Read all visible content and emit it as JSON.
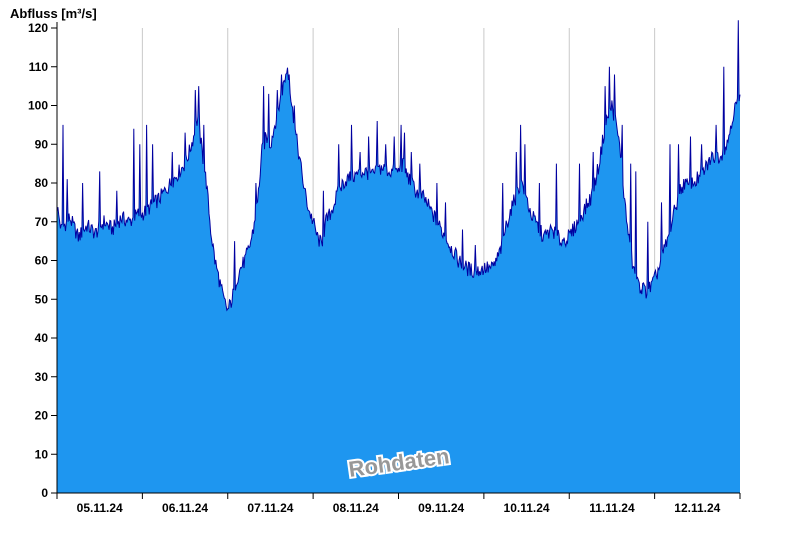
{
  "chart_data": {
    "type": "area",
    "title": "Abfluss [m³/s]",
    "watermark": "Rohdaten",
    "ylabel": "Abfluss [m³/s]",
    "xlabel": "",
    "ylim": [
      0,
      120
    ],
    "ytick_step": 10,
    "yticks": [
      0,
      10,
      20,
      30,
      40,
      50,
      60,
      70,
      80,
      90,
      100,
      110,
      120
    ],
    "x_range_days": [
      0,
      8
    ],
    "x_labels": [
      "05.11.24",
      "06.11.24",
      "07.11.24",
      "08.11.24",
      "09.11.24",
      "10.11.24",
      "11.11.24",
      "12.11.24"
    ],
    "grid": "vertical-day-boundaries",
    "legend": "none",
    "colors": {
      "fill": "#1E96F0",
      "line": "#0000A0",
      "grid": "#C9C9C9",
      "axis": "#000000",
      "watermark": "#989898",
      "background": "#FFFFFF"
    },
    "sample_step_days": 0.01,
    "noise_amplitude": 2.0,
    "series_anchors_day_value": [
      [
        0.0,
        74
      ],
      [
        0.05,
        68
      ],
      [
        0.15,
        71
      ],
      [
        0.25,
        66
      ],
      [
        0.35,
        69
      ],
      [
        0.45,
        67
      ],
      [
        0.55,
        70
      ],
      [
        0.65,
        68
      ],
      [
        0.75,
        71
      ],
      [
        0.85,
        70
      ],
      [
        0.95,
        72
      ],
      [
        1.0,
        72
      ],
      [
        1.1,
        74
      ],
      [
        1.2,
        76
      ],
      [
        1.3,
        79
      ],
      [
        1.4,
        82
      ],
      [
        1.5,
        85
      ],
      [
        1.55,
        88
      ],
      [
        1.6,
        92
      ],
      [
        1.65,
        97
      ],
      [
        1.7,
        88
      ],
      [
        1.75,
        80
      ],
      [
        1.8,
        68
      ],
      [
        1.85,
        60
      ],
      [
        1.9,
        55
      ],
      [
        1.95,
        50
      ],
      [
        2.0,
        47
      ],
      [
        2.05,
        50
      ],
      [
        2.1,
        55
      ],
      [
        2.15,
        58
      ],
      [
        2.2,
        60
      ],
      [
        2.25,
        63
      ],
      [
        2.3,
        68
      ],
      [
        2.35,
        75
      ],
      [
        2.4,
        88
      ],
      [
        2.45,
        92
      ],
      [
        2.5,
        90
      ],
      [
        2.55,
        95
      ],
      [
        2.6,
        100
      ],
      [
        2.65,
        105
      ],
      [
        2.7,
        110
      ],
      [
        2.75,
        100
      ],
      [
        2.8,
        92
      ],
      [
        2.85,
        85
      ],
      [
        2.9,
        78
      ],
      [
        2.95,
        73
      ],
      [
        3.0,
        70
      ],
      [
        3.05,
        66
      ],
      [
        3.1,
        64
      ],
      [
        3.15,
        70
      ],
      [
        3.2,
        72
      ],
      [
        3.25,
        75
      ],
      [
        3.3,
        78
      ],
      [
        3.35,
        80
      ],
      [
        3.4,
        81
      ],
      [
        3.5,
        82
      ],
      [
        3.6,
        83
      ],
      [
        3.7,
        82
      ],
      [
        3.8,
        84
      ],
      [
        3.9,
        83
      ],
      [
        4.0,
        83
      ],
      [
        4.05,
        85
      ],
      [
        4.1,
        82
      ],
      [
        4.2,
        78
      ],
      [
        4.3,
        76
      ],
      [
        4.4,
        72
      ],
      [
        4.5,
        68
      ],
      [
        4.6,
        64
      ],
      [
        4.7,
        60
      ],
      [
        4.8,
        58
      ],
      [
        4.9,
        57
      ],
      [
        5.0,
        58
      ],
      [
        5.1,
        58
      ],
      [
        5.15,
        60
      ],
      [
        5.2,
        63
      ],
      [
        5.25,
        68
      ],
      [
        5.3,
        72
      ],
      [
        5.35,
        75
      ],
      [
        5.4,
        78
      ],
      [
        5.45,
        80
      ],
      [
        5.5,
        76
      ],
      [
        5.55,
        72
      ],
      [
        5.6,
        70
      ],
      [
        5.7,
        66
      ],
      [
        5.8,
        68
      ],
      [
        5.9,
        65
      ],
      [
        6.0,
        66
      ],
      [
        6.05,
        68
      ],
      [
        6.1,
        70
      ],
      [
        6.15,
        72
      ],
      [
        6.2,
        74
      ],
      [
        6.25,
        76
      ],
      [
        6.3,
        80
      ],
      [
        6.35,
        85
      ],
      [
        6.4,
        92
      ],
      [
        6.45,
        97
      ],
      [
        6.5,
        100
      ],
      [
        6.55,
        95
      ],
      [
        6.6,
        88
      ],
      [
        6.65,
        75
      ],
      [
        6.7,
        65
      ],
      [
        6.75,
        58
      ],
      [
        6.8,
        54
      ],
      [
        6.85,
        53
      ],
      [
        6.9,
        52
      ],
      [
        6.95,
        53
      ],
      [
        7.0,
        55
      ],
      [
        7.05,
        58
      ],
      [
        7.1,
        62
      ],
      [
        7.15,
        65
      ],
      [
        7.2,
        70
      ],
      [
        7.25,
        74
      ],
      [
        7.3,
        78
      ],
      [
        7.35,
        80
      ],
      [
        7.4,
        79
      ],
      [
        7.45,
        80
      ],
      [
        7.5,
        81
      ],
      [
        7.55,
        82
      ],
      [
        7.6,
        84
      ],
      [
        7.65,
        86
      ],
      [
        7.7,
        87
      ],
      [
        7.75,
        87
      ],
      [
        7.8,
        88
      ],
      [
        7.85,
        90
      ],
      [
        7.9,
        96
      ],
      [
        7.95,
        100
      ],
      [
        8.0,
        101
      ]
    ],
    "spikes_day_value": [
      [
        0.07,
        95
      ],
      [
        0.12,
        81
      ],
      [
        0.3,
        80
      ],
      [
        0.5,
        83
      ],
      [
        0.7,
        78
      ],
      [
        0.9,
        94
      ],
      [
        0.97,
        90
      ],
      [
        1.05,
        95
      ],
      [
        1.12,
        90
      ],
      [
        1.35,
        88
      ],
      [
        1.5,
        93
      ],
      [
        1.62,
        104
      ],
      [
        1.66,
        105
      ],
      [
        1.72,
        95
      ],
      [
        2.08,
        65
      ],
      [
        2.33,
        80
      ],
      [
        2.42,
        105
      ],
      [
        2.48,
        103
      ],
      [
        2.58,
        104
      ],
      [
        2.63,
        108
      ],
      [
        2.72,
        108
      ],
      [
        2.78,
        100
      ],
      [
        3.12,
        78
      ],
      [
        3.3,
        90
      ],
      [
        3.45,
        95
      ],
      [
        3.55,
        88
      ],
      [
        3.65,
        92
      ],
      [
        3.75,
        96
      ],
      [
        3.85,
        90
      ],
      [
        3.95,
        92
      ],
      [
        4.03,
        95
      ],
      [
        4.07,
        93
      ],
      [
        4.15,
        88
      ],
      [
        4.25,
        85
      ],
      [
        4.45,
        80
      ],
      [
        4.55,
        75
      ],
      [
        4.75,
        68
      ],
      [
        4.9,
        64
      ],
      [
        5.22,
        80
      ],
      [
        5.38,
        88
      ],
      [
        5.43,
        95
      ],
      [
        5.48,
        90
      ],
      [
        5.65,
        80
      ],
      [
        5.85,
        85
      ],
      [
        6.12,
        85
      ],
      [
        6.28,
        88
      ],
      [
        6.42,
        105
      ],
      [
        6.47,
        110
      ],
      [
        6.53,
        108
      ],
      [
        6.62,
        95
      ],
      [
        6.72,
        85
      ],
      [
        6.78,
        83
      ],
      [
        6.92,
        70
      ],
      [
        7.08,
        75
      ],
      [
        7.18,
        90
      ],
      [
        7.28,
        90
      ],
      [
        7.42,
        92
      ],
      [
        7.55,
        90
      ],
      [
        7.72,
        95
      ],
      [
        7.81,
        110
      ],
      [
        7.98,
        122
      ]
    ]
  }
}
